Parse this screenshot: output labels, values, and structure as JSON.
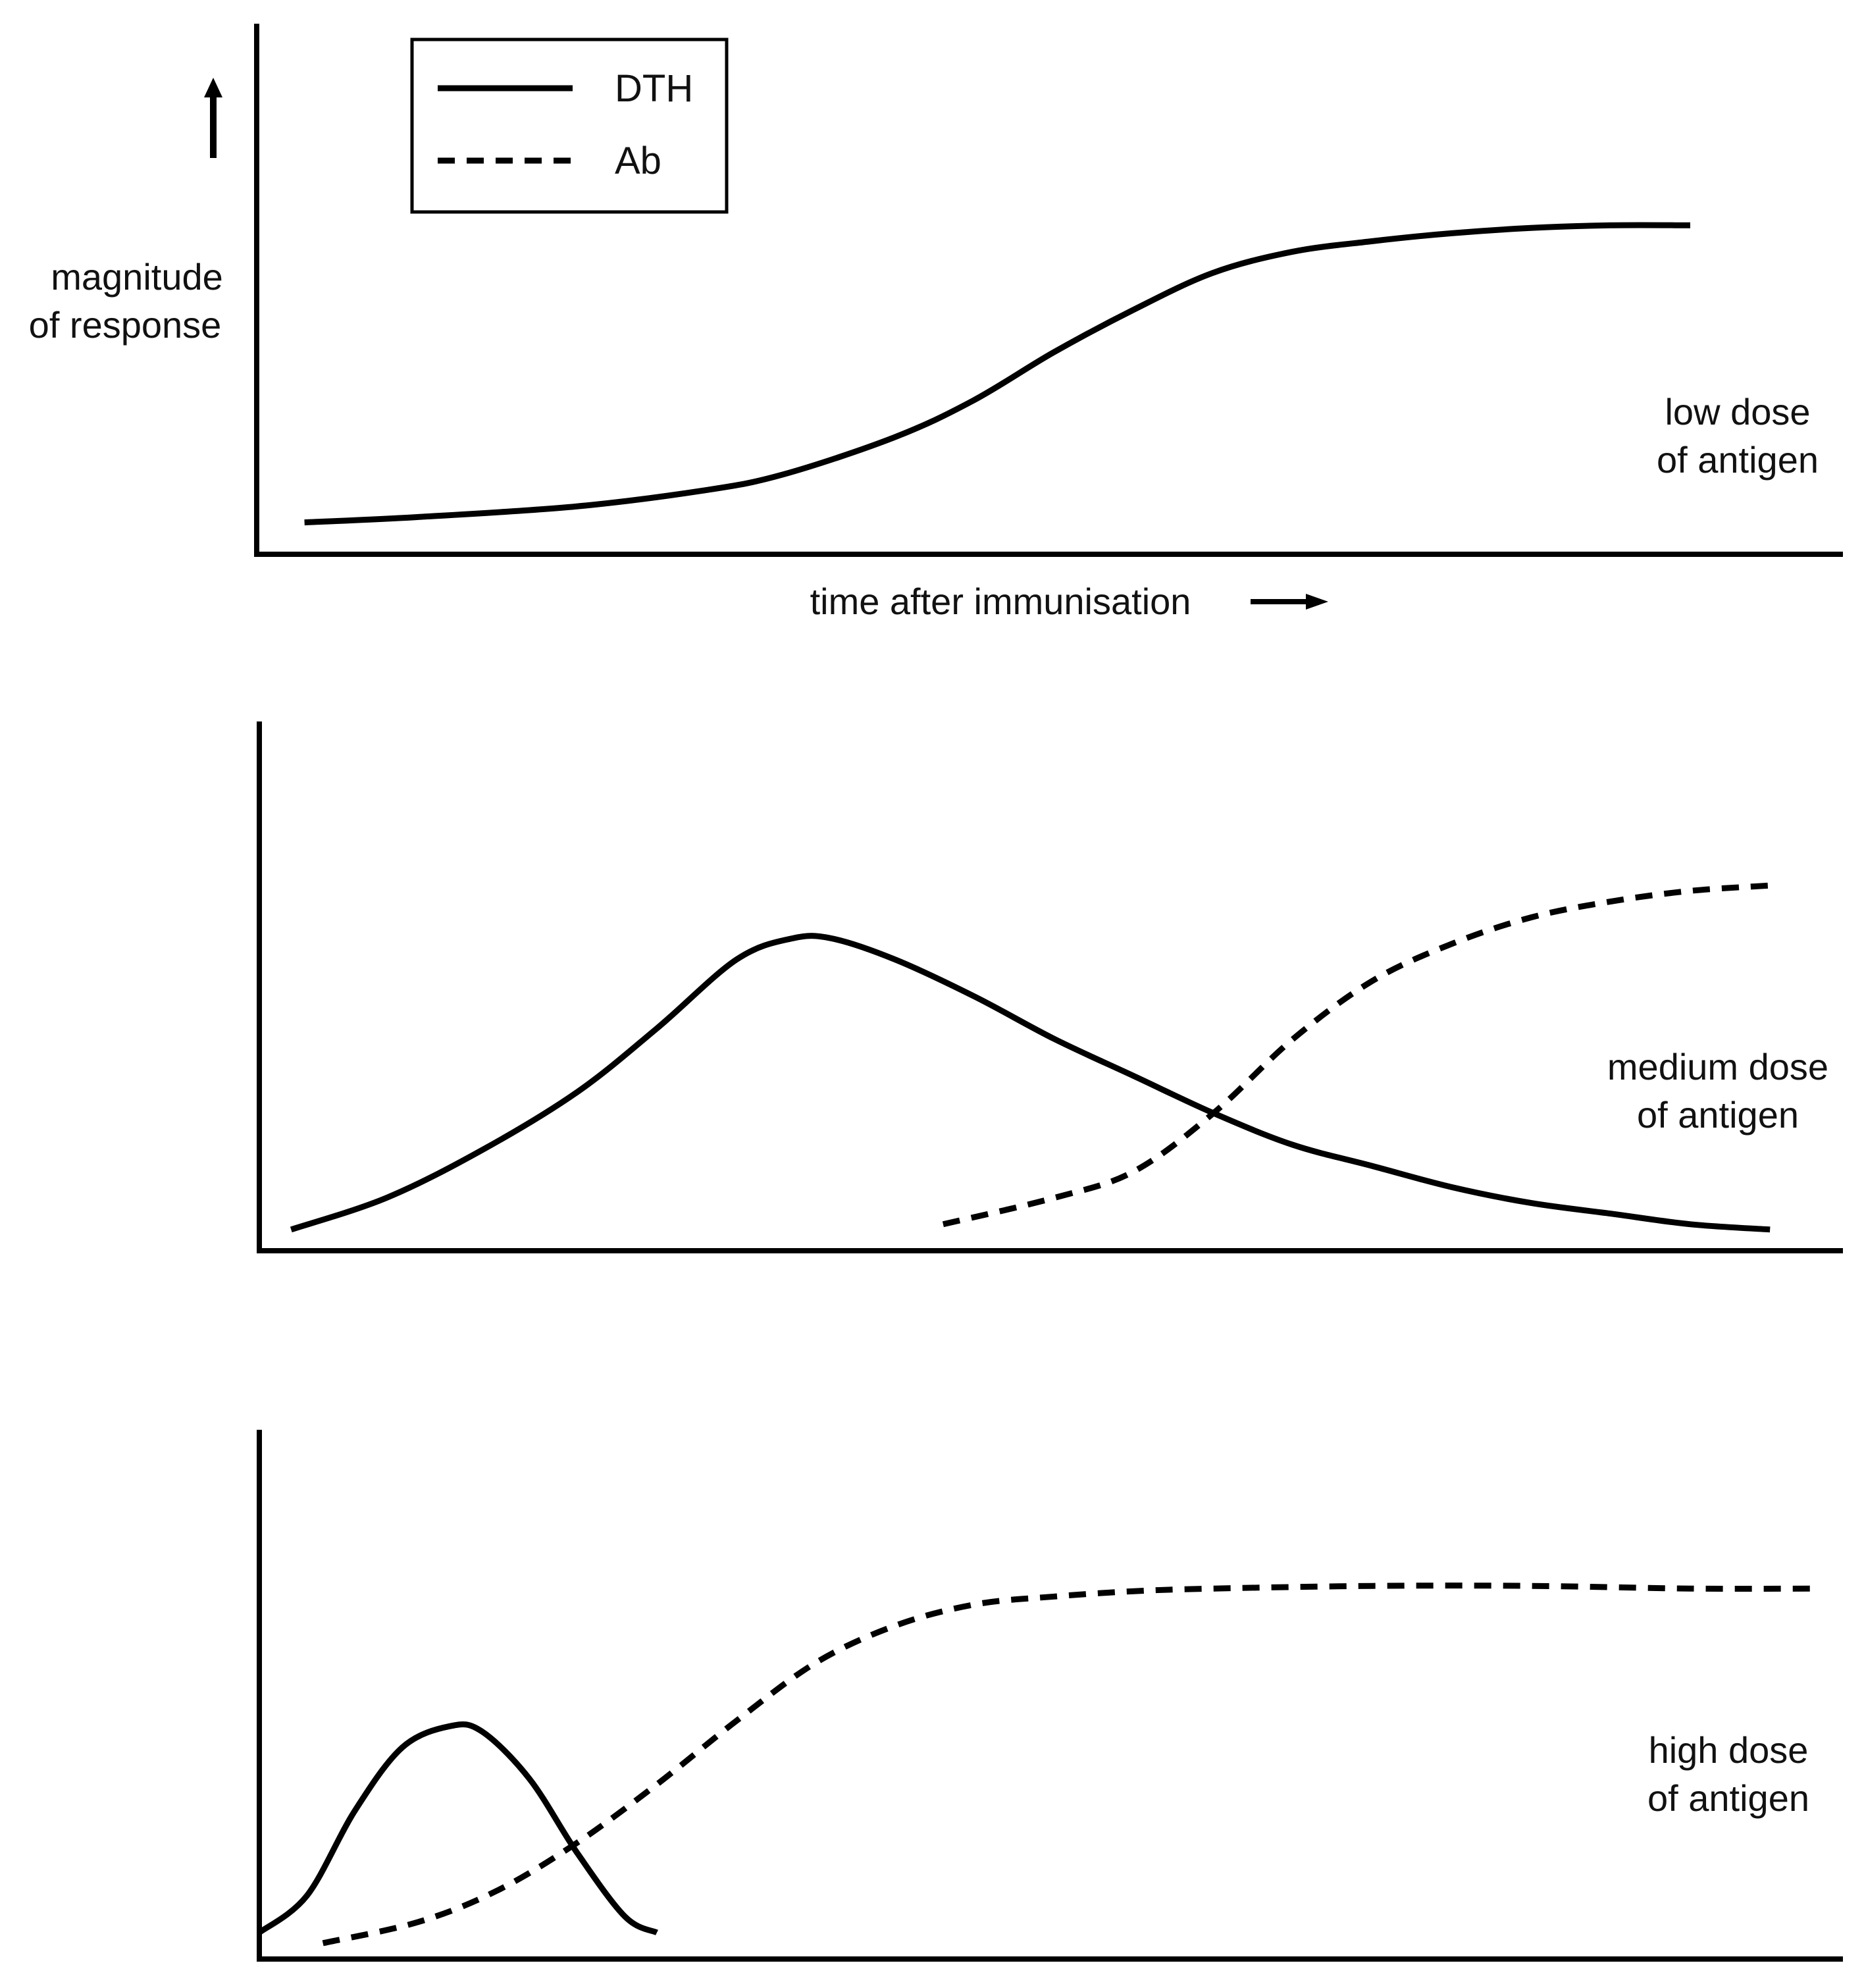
{
  "figure": {
    "ylabel_line1": "magnitude",
    "ylabel_line2": "of response",
    "xlabel": "time after immunisation",
    "legend": {
      "solid_label": "DTH",
      "dashed_label": "Ab"
    },
    "colors": {
      "ink": "#000000",
      "background": "#ffffff"
    }
  },
  "chart_data": [
    {
      "type": "line",
      "title": "",
      "panel_label_line1": "low dose",
      "panel_label_line2": "of antigen",
      "xlabel": "time after immunisation",
      "ylabel": "magnitude of response",
      "xlim": [
        0,
        100
      ],
      "ylim": [
        0,
        100
      ],
      "grid": false,
      "legend": [
        "DTH",
        "Ab"
      ],
      "legend_placement": "top-left",
      "series": [
        {
          "name": "DTH",
          "style": "solid",
          "x": [
            3,
            10,
            20,
            28,
            33,
            40,
            45,
            50,
            55,
            60,
            65,
            70,
            75,
            80,
            85,
            90
          ],
          "y": [
            6,
            7,
            9,
            12,
            15,
            22,
            29,
            38,
            46,
            53,
            57,
            59,
            60.5,
            61.5,
            62,
            62
          ]
        }
      ]
    },
    {
      "type": "line",
      "title": "",
      "panel_label_line1": "medium dose",
      "panel_label_line2": "of antigen",
      "xlim": [
        0,
        100
      ],
      "ylim": [
        0,
        100
      ],
      "grid": false,
      "series": [
        {
          "name": "DTH",
          "style": "solid",
          "x": [
            2,
            8,
            14,
            20,
            25,
            30,
            33.5,
            36,
            40,
            45,
            50,
            55,
            60,
            65,
            70,
            75,
            80,
            85,
            90,
            95
          ],
          "y": [
            4,
            10,
            19,
            30,
            42,
            55,
            59,
            59,
            55,
            48,
            40,
            33,
            26,
            20,
            16,
            12,
            9,
            7,
            5,
            4
          ]
        },
        {
          "name": "Ab",
          "style": "dashed",
          "x": [
            43,
            50,
            55,
            60,
            65,
            70,
            75,
            80,
            85,
            90,
            95
          ],
          "y": [
            5,
            10,
            15,
            26,
            40,
            51,
            58,
            63,
            66,
            68,
            69
          ]
        }
      ]
    },
    {
      "type": "line",
      "title": "",
      "panel_label_line1": "high dose",
      "panel_label_line2": "of antigen",
      "xlim": [
        0,
        100
      ],
      "ylim": [
        0,
        100
      ],
      "grid": false,
      "series": [
        {
          "name": "DTH",
          "style": "solid",
          "x": [
            0,
            3,
            6,
            9,
            12,
            14,
            17,
            20,
            23,
            25
          ],
          "y": [
            5,
            12,
            28,
            40,
            44,
            43,
            34,
            20,
            8,
            5
          ]
        },
        {
          "name": "Ab",
          "style": "dashed",
          "x": [
            4,
            10,
            15,
            20,
            25,
            30,
            35,
            40,
            45,
            50,
            55,
            60,
            70,
            80,
            90,
            98
          ],
          "y": [
            3,
            7,
            13,
            22,
            33,
            45,
            56,
            63,
            67,
            68.5,
            69.5,
            70,
            70.5,
            70.5,
            70,
            70
          ]
        }
      ]
    }
  ]
}
